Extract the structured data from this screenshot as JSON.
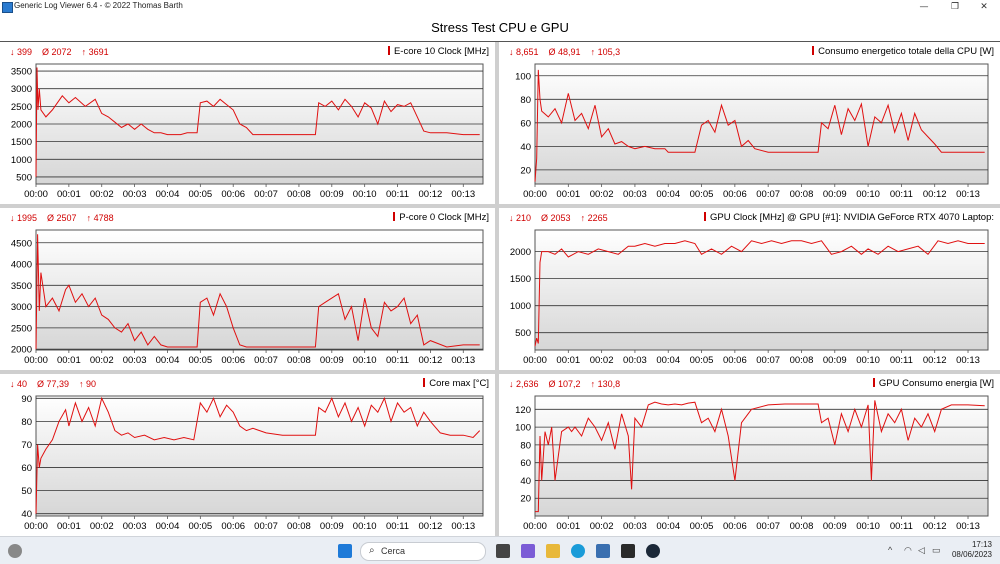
{
  "window": {
    "title": "Generic Log Viewer 6.4 - © 2022 Thomas Barth",
    "minimize": "—",
    "maximize": "❐",
    "close": "✕"
  },
  "main_title": "Stress Test CPU e GPU",
  "taskbar": {
    "search_placeholder": "Cerca",
    "time": "17:13",
    "date": "08/06/2023"
  },
  "chart_data": [
    {
      "type": "line",
      "title": "E-core 10 Clock [MHz]",
      "stats": {
        "min": "↓ 399",
        "avg": "Ø 2072",
        "max": "↑ 3691"
      },
      "x_ticks": [
        "00:00",
        "00:01",
        "00:02",
        "00:03",
        "00:04",
        "00:05",
        "00:06",
        "00:07",
        "00:08",
        "00:09",
        "00:10",
        "00:11",
        "00:12",
        "00:13"
      ],
      "y_ticks": [
        500,
        1000,
        1500,
        2000,
        2500,
        3000,
        3500
      ],
      "ylim": [
        300,
        3700
      ],
      "x": [
        0,
        0.03,
        0.06,
        0.1,
        0.15,
        0.3,
        0.5,
        0.8,
        1.0,
        1.2,
        1.5,
        1.8,
        2.0,
        2.2,
        2.4,
        2.6,
        2.8,
        3.0,
        3.2,
        3.4,
        3.6,
        3.8,
        4.0,
        4.2,
        4.4,
        4.6,
        4.8,
        4.9,
        5.0,
        5.2,
        5.4,
        5.6,
        5.8,
        6.0,
        6.2,
        6.4,
        6.6,
        6.8,
        7.0,
        7.5,
        8.0,
        8.5,
        8.6,
        8.8,
        9.0,
        9.2,
        9.4,
        9.6,
        9.8,
        10.0,
        10.2,
        10.4,
        10.6,
        10.8,
        11.0,
        11.2,
        11.4,
        11.6,
        11.8,
        12.0,
        12.5,
        13.0,
        13.5
      ],
      "values": [
        500,
        3600,
        2400,
        3000,
        2400,
        2200,
        2400,
        2800,
        2600,
        2750,
        2500,
        2700,
        2300,
        2200,
        2050,
        1900,
        2000,
        1850,
        2000,
        1850,
        1750,
        1750,
        1700,
        1700,
        1700,
        1750,
        1750,
        1750,
        2600,
        2650,
        2500,
        2700,
        2550,
        2400,
        2000,
        1900,
        1700,
        1700,
        1700,
        1700,
        1700,
        1700,
        2600,
        2500,
        2650,
        2400,
        2700,
        2500,
        2200,
        2600,
        2450,
        2000,
        2650,
        2350,
        2550,
        2500,
        2600,
        2200,
        1800,
        1750,
        1750,
        1700,
        1700
      ]
    },
    {
      "type": "line",
      "title": "Consumo energetico totale della CPU [W]",
      "stats": {
        "min": "↓ 8,651",
        "avg": "Ø 48,91",
        "max": "↑ 105,3"
      },
      "x_ticks": [
        "00:00",
        "00:01",
        "00:02",
        "00:03",
        "00:04",
        "00:05",
        "00:06",
        "00:07",
        "00:08",
        "00:09",
        "00:10",
        "00:11",
        "00:12",
        "00:13"
      ],
      "y_ticks": [
        20,
        40,
        60,
        80,
        100
      ],
      "ylim": [
        8,
        110
      ],
      "x": [
        0,
        0.05,
        0.1,
        0.15,
        0.2,
        0.4,
        0.6,
        0.8,
        1.0,
        1.2,
        1.4,
        1.6,
        1.8,
        2.0,
        2.2,
        2.4,
        2.6,
        2.8,
        3.0,
        3.3,
        3.6,
        3.9,
        4.0,
        4.3,
        4.6,
        4.8,
        5.0,
        5.2,
        5.4,
        5.6,
        5.8,
        6.0,
        6.2,
        6.4,
        6.6,
        7.0,
        7.5,
        8.0,
        8.5,
        8.6,
        8.8,
        9.0,
        9.2,
        9.4,
        9.6,
        9.8,
        10.0,
        10.2,
        10.4,
        10.6,
        10.8,
        11.0,
        11.2,
        11.4,
        11.6,
        11.8,
        12.0,
        12.2,
        12.5,
        13.0,
        13.5
      ],
      "values": [
        10,
        30,
        105,
        80,
        70,
        65,
        72,
        60,
        85,
        62,
        68,
        55,
        75,
        48,
        55,
        42,
        44,
        40,
        38,
        40,
        38,
        38,
        35,
        35,
        35,
        35,
        58,
        62,
        52,
        75,
        58,
        62,
        40,
        45,
        38,
        35,
        35,
        35,
        35,
        60,
        55,
        75,
        50,
        72,
        62,
        76,
        40,
        65,
        60,
        75,
        52,
        68,
        45,
        68,
        54,
        48,
        42,
        35,
        35,
        35,
        35
      ]
    },
    {
      "type": "line",
      "title": "P-core 0 Clock [MHz]",
      "stats": {
        "min": "↓ 1995",
        "avg": "Ø 2507",
        "max": "↑ 4788"
      },
      "x_ticks": [
        "00:00",
        "00:01",
        "00:02",
        "00:03",
        "00:04",
        "00:05",
        "00:06",
        "00:07",
        "00:08",
        "00:09",
        "00:10",
        "00:11",
        "00:12",
        "00:13"
      ],
      "y_ticks": [
        2000,
        2500,
        3000,
        3500,
        4000,
        4500
      ],
      "ylim": [
        1980,
        4800
      ],
      "x": [
        0,
        0.05,
        0.1,
        0.15,
        0.3,
        0.5,
        0.7,
        0.9,
        1.0,
        1.2,
        1.4,
        1.6,
        1.8,
        2.0,
        2.2,
        2.4,
        2.6,
        2.8,
        3.0,
        3.2,
        3.4,
        3.6,
        3.8,
        4.0,
        4.2,
        4.4,
        4.6,
        4.8,
        4.9,
        5.0,
        5.2,
        5.4,
        5.6,
        5.8,
        6.0,
        6.2,
        6.4,
        6.6,
        7.0,
        7.5,
        8.0,
        8.5,
        8.6,
        8.8,
        9.0,
        9.2,
        9.4,
        9.6,
        9.8,
        10.0,
        10.2,
        10.4,
        10.6,
        10.8,
        11.0,
        11.2,
        11.4,
        11.6,
        11.8,
        12.0,
        12.5,
        13.0,
        13.5
      ],
      "values": [
        2000,
        4700,
        2900,
        3800,
        3000,
        3200,
        2900,
        3400,
        3500,
        3100,
        3300,
        3000,
        3200,
        2800,
        2700,
        2500,
        2400,
        2600,
        2200,
        2400,
        2100,
        2300,
        2100,
        2050,
        2050,
        2050,
        2050,
        2050,
        2050,
        3100,
        3200,
        2800,
        3300,
        3000,
        2500,
        2100,
        2050,
        2050,
        2050,
        2050,
        2050,
        2050,
        3000,
        3100,
        3200,
        3300,
        2700,
        3000,
        2200,
        3200,
        2500,
        2300,
        3100,
        2900,
        3000,
        3200,
        2600,
        2800,
        2100,
        2200,
        2050,
        2100,
        2100
      ]
    },
    {
      "type": "line",
      "title": "GPU Clock [MHz] @ GPU [#1]: NVIDIA GeForce RTX 4070 Laptop:",
      "stats": {
        "min": "↓ 210",
        "avg": "Ø 2053",
        "max": "↑ 2265"
      },
      "x_ticks": [
        "00:00",
        "00:01",
        "00:02",
        "00:03",
        "00:04",
        "00:05",
        "00:06",
        "00:07",
        "00:08",
        "00:09",
        "00:10",
        "00:11",
        "00:12",
        "00:13"
      ],
      "y_ticks": [
        500,
        1000,
        1500,
        2000
      ],
      "ylim": [
        180,
        2400
      ],
      "x": [
        0,
        0.05,
        0.1,
        0.15,
        0.2,
        0.4,
        0.6,
        0.8,
        1.0,
        1.3,
        1.6,
        1.9,
        2.2,
        2.5,
        2.8,
        3.0,
        3.3,
        3.6,
        3.9,
        4.2,
        4.5,
        4.8,
        5.0,
        5.3,
        5.6,
        5.9,
        6.2,
        6.5,
        6.8,
        7.1,
        7.4,
        7.7,
        8.0,
        8.3,
        8.6,
        8.9,
        9.2,
        9.5,
        9.8,
        10.0,
        10.3,
        10.6,
        10.9,
        11.2,
        11.5,
        11.8,
        12.1,
        12.4,
        12.7,
        13.0,
        13.3,
        13.5
      ],
      "values": [
        250,
        400,
        300,
        1800,
        2000,
        2000,
        1950,
        2050,
        1900,
        2000,
        1950,
        2050,
        2000,
        1950,
        2100,
        2100,
        2150,
        2100,
        2150,
        2150,
        2200,
        2150,
        1950,
        2050,
        1950,
        2100,
        2000,
        2200,
        2150,
        2200,
        2150,
        2200,
        2200,
        2150,
        2200,
        1950,
        2000,
        2100,
        1950,
        2050,
        1950,
        2100,
        2000,
        2050,
        2100,
        1950,
        2200,
        2150,
        2200,
        2150,
        2150,
        2150
      ]
    },
    {
      "type": "line",
      "title": "Core max [°C]",
      "stats": {
        "min": "↓ 40",
        "avg": "Ø 77,39",
        "max": "↑ 90"
      },
      "x_ticks": [
        "00:00",
        "00:01",
        "00:02",
        "00:03",
        "00:04",
        "00:05",
        "00:06",
        "00:07",
        "00:08",
        "00:09",
        "00:10",
        "00:11",
        "00:12",
        "00:13"
      ],
      "y_ticks": [
        40,
        50,
        60,
        70,
        80,
        90
      ],
      "ylim": [
        39,
        91
      ],
      "x": [
        0,
        0.05,
        0.1,
        0.15,
        0.3,
        0.5,
        0.7,
        0.9,
        1.0,
        1.2,
        1.4,
        1.6,
        1.8,
        2.0,
        2.2,
        2.4,
        2.6,
        2.8,
        3.0,
        3.3,
        3.6,
        3.9,
        4.2,
        4.5,
        4.8,
        5.0,
        5.2,
        5.4,
        5.6,
        5.8,
        6.0,
        6.2,
        6.4,
        6.6,
        7.0,
        7.5,
        8.0,
        8.5,
        8.6,
        8.8,
        9.0,
        9.2,
        9.4,
        9.6,
        9.8,
        10.0,
        10.2,
        10.4,
        10.6,
        10.8,
        11.0,
        11.2,
        11.4,
        11.6,
        11.8,
        12.0,
        12.3,
        12.6,
        13.0,
        13.3,
        13.5
      ],
      "values": [
        40,
        70,
        60,
        64,
        68,
        72,
        80,
        85,
        78,
        88,
        80,
        86,
        78,
        90,
        84,
        76,
        74,
        75,
        73,
        74,
        72,
        73,
        72,
        73,
        72,
        88,
        84,
        90,
        82,
        87,
        84,
        78,
        76,
        77,
        75,
        74,
        74,
        74,
        86,
        84,
        90,
        82,
        88,
        80,
        86,
        78,
        87,
        84,
        90,
        80,
        88,
        84,
        86,
        78,
        84,
        80,
        75,
        74,
        74,
        73,
        76
      ]
    },
    {
      "type": "line",
      "title": "GPU Consumo energia [W]",
      "stats": {
        "min": "↓ 2,636",
        "avg": "Ø 107,2",
        "max": "↑ 130,8"
      },
      "x_ticks": [
        "00:00",
        "00:01",
        "00:02",
        "00:03",
        "00:04",
        "00:05",
        "00:06",
        "00:07",
        "00:08",
        "00:09",
        "00:10",
        "00:11",
        "00:12",
        "00:13"
      ],
      "y_ticks": [
        20,
        40,
        60,
        80,
        100,
        120
      ],
      "ylim": [
        0,
        135
      ],
      "x": [
        0,
        0.1,
        0.15,
        0.2,
        0.3,
        0.4,
        0.5,
        0.6,
        0.8,
        1.0,
        1.1,
        1.2,
        1.4,
        1.6,
        1.8,
        2.0,
        2.2,
        2.4,
        2.6,
        2.8,
        2.9,
        3.0,
        3.2,
        3.4,
        3.6,
        3.8,
        4.0,
        4.2,
        4.4,
        4.6,
        4.8,
        5.0,
        5.2,
        5.4,
        5.6,
        5.8,
        6.0,
        6.2,
        6.5,
        7.0,
        7.5,
        8.0,
        8.5,
        8.6,
        8.8,
        9.0,
        9.2,
        9.4,
        9.6,
        9.8,
        10.0,
        10.1,
        10.2,
        10.4,
        10.6,
        10.8,
        11.0,
        11.2,
        11.4,
        11.6,
        11.8,
        12.0,
        12.2,
        12.5,
        13.0,
        13.5
      ],
      "values": [
        5,
        5,
        90,
        40,
        95,
        80,
        100,
        40,
        95,
        100,
        95,
        100,
        90,
        110,
        100,
        85,
        105,
        75,
        115,
        90,
        30,
        110,
        100,
        125,
        128,
        126,
        125,
        126,
        125,
        127,
        128,
        105,
        110,
        95,
        120,
        90,
        40,
        105,
        120,
        125,
        126,
        126,
        126,
        105,
        110,
        80,
        115,
        95,
        120,
        100,
        125,
        40,
        130,
        95,
        115,
        105,
        120,
        85,
        110,
        100,
        115,
        95,
        120,
        125,
        125,
        124
      ]
    }
  ]
}
